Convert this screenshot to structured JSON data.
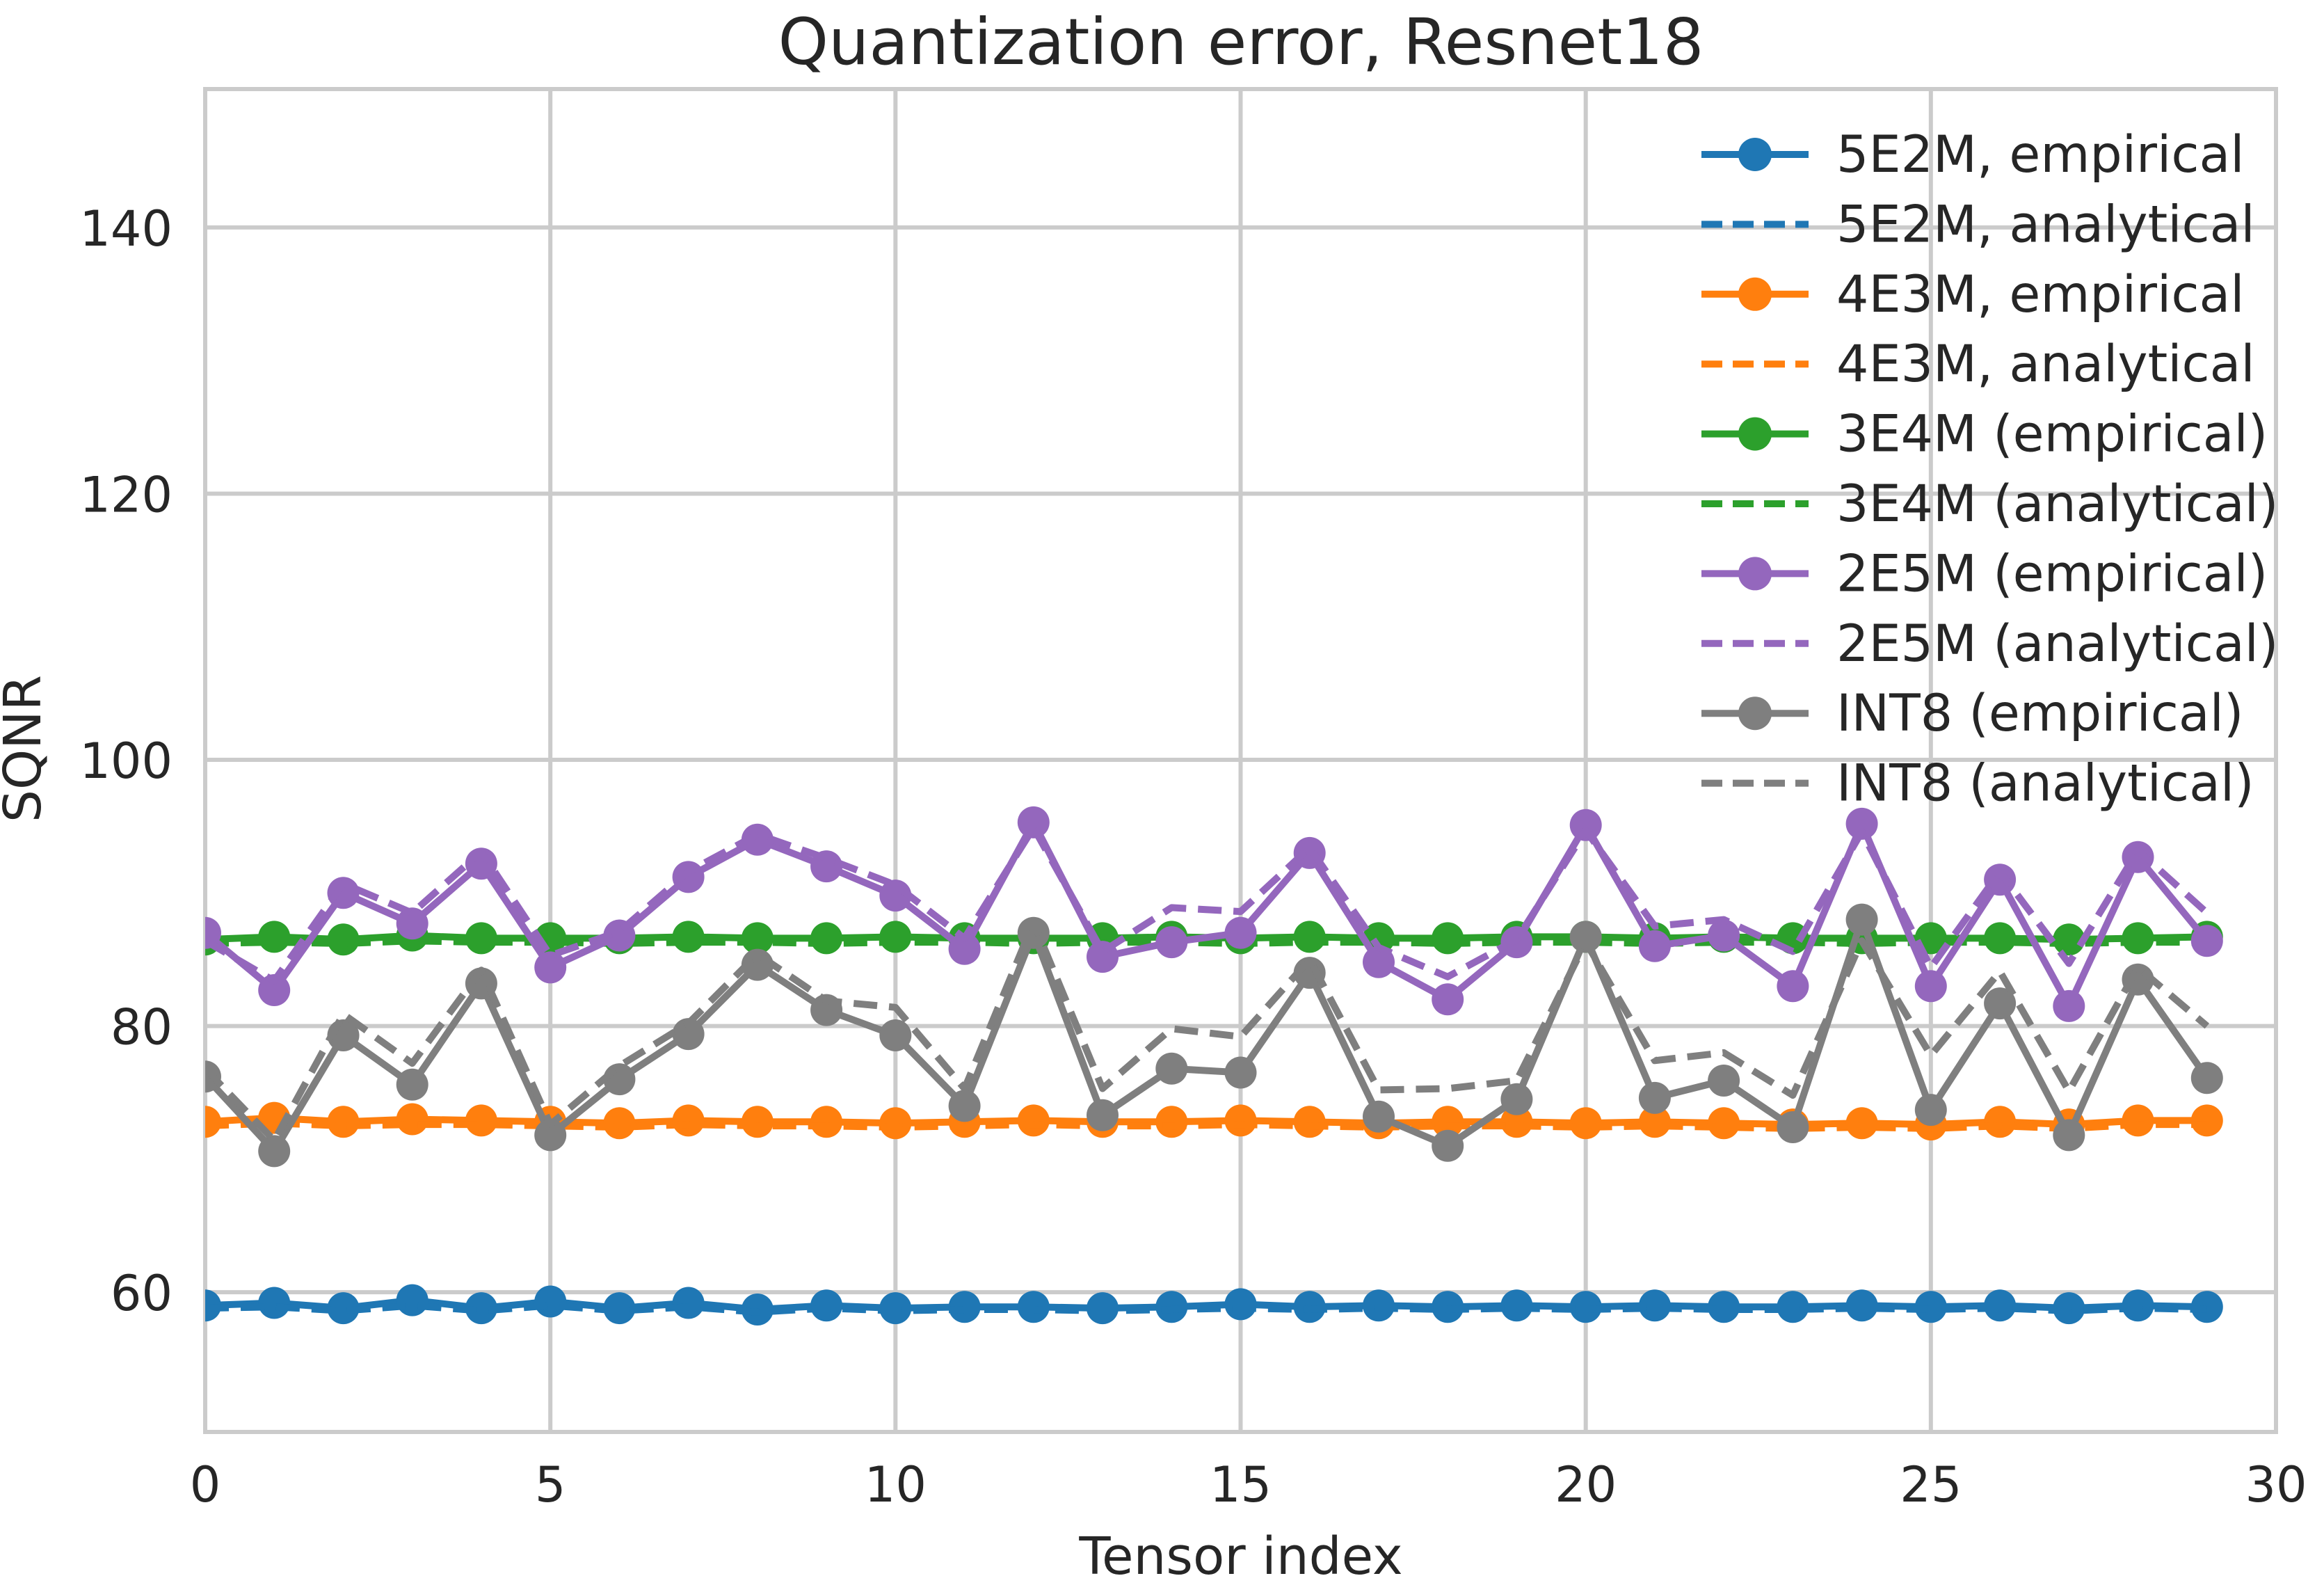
{
  "chart_data": {
    "type": "line",
    "title": "Quantization error, Resnet18",
    "xlabel": "Tensor index",
    "ylabel": "SQNR",
    "xlim": [
      0,
      30
    ],
    "ylim": [
      49.5,
      150.4
    ],
    "xticks": [
      0,
      5,
      10,
      15,
      20,
      25,
      30
    ],
    "yticks": [
      60,
      80,
      100,
      120,
      140
    ],
    "grid": true,
    "grid_color": "#cbcbcb",
    "background_color": "#ffffff",
    "text_color": "#262626",
    "legend_position": "upper right",
    "x": [
      0,
      1,
      2,
      3,
      4,
      5,
      6,
      7,
      8,
      9,
      10,
      11,
      12,
      13,
      14,
      15,
      16,
      17,
      18,
      19,
      20,
      21,
      22,
      23,
      24,
      25,
      26,
      27,
      28,
      29
    ],
    "series": [
      {
        "name": "5E2M, empirical",
        "color": "#1f77b4",
        "linestyle": "solid",
        "marker": true,
        "values": [
          59.0,
          59.2,
          58.8,
          59.4,
          58.8,
          59.3,
          58.8,
          59.2,
          58.7,
          59.0,
          58.8,
          58.9,
          58.9,
          58.8,
          58.9,
          59.1,
          58.9,
          59.0,
          58.9,
          59.0,
          58.9,
          59.0,
          58.9,
          58.9,
          59.0,
          58.9,
          59.0,
          58.8,
          59.0,
          58.9
        ]
      },
      {
        "name": "5E2M, analytical",
        "color": "#1f77b4",
        "linestyle": "dashed",
        "marker": false,
        "values": [
          58.8,
          58.9,
          58.6,
          59.0,
          58.6,
          59.0,
          58.6,
          58.9,
          58.5,
          58.8,
          58.6,
          58.7,
          58.7,
          58.6,
          58.7,
          58.8,
          58.7,
          58.8,
          58.7,
          58.8,
          58.7,
          58.8,
          58.7,
          58.7,
          58.8,
          58.7,
          58.8,
          58.6,
          58.8,
          58.7
        ]
      },
      {
        "name": "4E3M, empirical",
        "color": "#ff7f0e",
        "linestyle": "solid",
        "marker": true,
        "values": [
          72.8,
          73.1,
          72.8,
          73.0,
          72.9,
          72.8,
          72.7,
          72.9,
          72.8,
          72.8,
          72.7,
          72.8,
          72.9,
          72.8,
          72.8,
          72.9,
          72.8,
          72.7,
          72.8,
          72.8,
          72.7,
          72.8,
          72.7,
          72.6,
          72.7,
          72.6,
          72.8,
          72.6,
          72.9,
          72.9
        ]
      },
      {
        "name": "4E3M, analytical",
        "color": "#ff7f0e",
        "linestyle": "dashed",
        "marker": false,
        "values": [
          72.5,
          72.7,
          72.5,
          72.6,
          72.6,
          72.5,
          72.4,
          72.6,
          72.5,
          72.5,
          72.4,
          72.5,
          72.6,
          72.5,
          72.5,
          72.6,
          72.5,
          72.4,
          72.5,
          72.5,
          72.4,
          72.5,
          72.4,
          72.3,
          72.4,
          72.3,
          72.5,
          72.3,
          72.6,
          72.6
        ]
      },
      {
        "name": "3E4M (empirical)",
        "color": "#2ca02c",
        "linestyle": "solid",
        "marker": true,
        "values": [
          86.5,
          86.7,
          86.5,
          86.8,
          86.6,
          86.6,
          86.6,
          86.7,
          86.6,
          86.6,
          86.7,
          86.6,
          86.6,
          86.6,
          86.7,
          86.6,
          86.7,
          86.6,
          86.6,
          86.7,
          86.7,
          86.6,
          86.7,
          86.6,
          86.6,
          86.6,
          86.6,
          86.5,
          86.6,
          86.7
        ]
      },
      {
        "name": "3E4M (analytical)",
        "color": "#2ca02c",
        "linestyle": "dashed",
        "marker": false,
        "values": [
          86.2,
          86.3,
          86.2,
          86.4,
          86.3,
          86.3,
          86.2,
          86.3,
          86.3,
          86.2,
          86.3,
          86.3,
          86.2,
          86.3,
          86.3,
          86.2,
          86.3,
          86.3,
          86.2,
          86.3,
          86.3,
          86.2,
          86.3,
          86.3,
          86.2,
          86.3,
          86.3,
          86.2,
          86.3,
          86.3
        ]
      },
      {
        "name": "2E5M (empirical)",
        "color": "#9467bd",
        "linestyle": "solid",
        "marker": true,
        "values": [
          87.0,
          82.7,
          90.0,
          87.7,
          92.2,
          84.4,
          86.8,
          91.2,
          94.0,
          92.0,
          89.8,
          85.8,
          95.3,
          85.2,
          86.3,
          87.0,
          93.0,
          84.8,
          82.0,
          86.3,
          95.1,
          86.0,
          86.8,
          83.0,
          95.2,
          83.0,
          91.0,
          81.5,
          92.7,
          86.4
        ]
      },
      {
        "name": "2E5M (analytical)",
        "color": "#9467bd",
        "linestyle": "dashed",
        "marker": false,
        "values": [
          86.4,
          83.4,
          90.7,
          88.5,
          93.1,
          85.3,
          87.1,
          91.6,
          94.4,
          92.6,
          90.6,
          86.6,
          94.9,
          85.6,
          88.9,
          88.6,
          93.4,
          85.9,
          83.7,
          86.5,
          94.7,
          87.5,
          88.0,
          85.6,
          94.6,
          84.4,
          91.6,
          84.7,
          93.2,
          88.5
        ]
      },
      {
        "name": "INT8 (empirical)",
        "color": "#7f7f7f",
        "linestyle": "solid",
        "marker": true,
        "values": [
          76.2,
          70.6,
          79.3,
          75.6,
          83.2,
          71.8,
          76.0,
          79.4,
          84.6,
          81.2,
          79.3,
          74.0,
          87.0,
          73.3,
          76.8,
          76.5,
          84.0,
          73.2,
          71.0,
          74.5,
          86.7,
          74.6,
          75.9,
          72.4,
          88.0,
          73.7,
          81.7,
          71.8,
          83.5,
          76.1
        ]
      },
      {
        "name": "INT8 (analytical)",
        "color": "#7f7f7f",
        "linestyle": "dashed",
        "marker": false,
        "values": [
          76.8,
          71.4,
          80.9,
          77.2,
          84.2,
          72.6,
          77.0,
          80.2,
          85.4,
          81.9,
          81.4,
          75.3,
          87.8,
          75.3,
          79.8,
          79.2,
          85.0,
          75.2,
          75.3,
          75.9,
          86.3,
          77.4,
          78.0,
          74.8,
          86.4,
          77.8,
          84.1,
          75.1,
          84.4,
          80.0
        ]
      }
    ]
  }
}
